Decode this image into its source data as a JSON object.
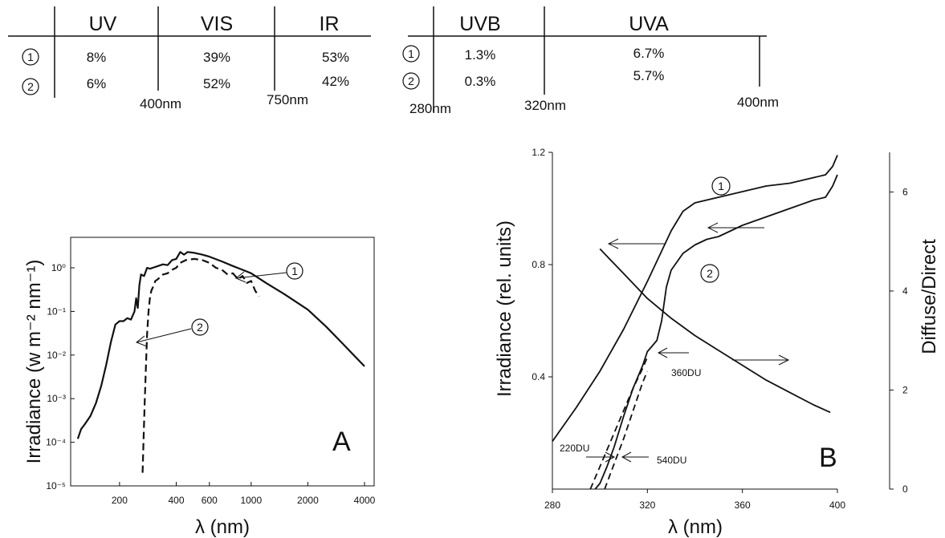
{
  "table_left": {
    "columns": [
      "UV",
      "VIS",
      "IR"
    ],
    "rows": [
      {
        "marker": "1",
        "values": [
          "8%",
          "39%",
          "53%"
        ]
      },
      {
        "marker": "2",
        "values": [
          "6%",
          "52%",
          "42%"
        ]
      }
    ],
    "boundaries": [
      "400nm",
      "750nm"
    ]
  },
  "table_right": {
    "columns": [
      "UVB",
      "UVA"
    ],
    "rows": [
      {
        "marker": "1",
        "values": [
          "1.3%",
          "6.7%"
        ]
      },
      {
        "marker": "2",
        "values": [
          "0.3%",
          "5.7%"
        ]
      }
    ],
    "boundaries": [
      "280nm",
      "320nm",
      "400nm"
    ]
  },
  "chart_data": [
    {
      "type": "line",
      "panel": "A",
      "xlabel": "λ (nm)",
      "ylabel": "Irradiance (w m⁻² nm⁻¹)",
      "x_scale": "log",
      "y_scale": "log",
      "xlim": [
        110,
        4500
      ],
      "ylim": [
        1e-05,
        5
      ],
      "x_ticks": [
        {
          "value": 200,
          "label": "200"
        },
        {
          "value": 400,
          "label": "400"
        },
        {
          "value": 600,
          "label": "600"
        },
        {
          "value": 1000,
          "label": "1000"
        },
        {
          "value": 2000,
          "label": "2000"
        },
        {
          "value": 4000,
          "label": "4000"
        }
      ],
      "y_ticks": [
        {
          "value": 1,
          "label": "10⁰"
        },
        {
          "value": 0.1,
          "label": "10⁻¹"
        },
        {
          "value": 0.01,
          "label": "10⁻²"
        },
        {
          "value": 0.001,
          "label": "10⁻³"
        },
        {
          "value": 0.0001,
          "label": "10⁻⁴"
        },
        {
          "value": 1e-05,
          "label": "10⁻⁵"
        }
      ],
      "series": [
        {
          "marker": "1",
          "style": "solid",
          "x": [
            120,
            125,
            130,
            140,
            150,
            160,
            170,
            180,
            190,
            200,
            210,
            220,
            230,
            240,
            245,
            250,
            255,
            260,
            270,
            280,
            290,
            300,
            320,
            340,
            360,
            380,
            400,
            420,
            440,
            460,
            500,
            550,
            600,
            700,
            800,
            900,
            1000,
            1200,
            1500,
            2000,
            2500,
            3000,
            3500,
            4000
          ],
          "y": [
            0.00012,
            0.0002,
            0.00025,
            0.0004,
            0.0008,
            0.002,
            0.006,
            0.02,
            0.05,
            0.06,
            0.06,
            0.07,
            0.065,
            0.1,
            0.2,
            0.12,
            0.4,
            0.7,
            0.65,
            1.0,
            0.95,
            1.0,
            1.1,
            1.2,
            1.15,
            1.5,
            1.6,
            2.3,
            2.0,
            2.3,
            2.2,
            2.0,
            1.8,
            1.4,
            1.1,
            0.9,
            0.75,
            0.45,
            0.25,
            0.11,
            0.045,
            0.02,
            0.01,
            0.0055
          ]
        },
        {
          "marker": "2",
          "style": "dashed",
          "x": [
            265,
            268,
            272,
            276,
            280,
            285,
            290,
            295,
            300,
            310,
            320,
            340,
            360,
            380,
            400,
            420,
            450,
            500,
            550,
            600,
            650,
            700,
            750,
            800,
            850,
            900,
            950,
            1000,
            1050,
            1100
          ],
          "y": [
            2e-05,
            0.0001,
            0.0008,
            0.005,
            0.03,
            0.1,
            0.2,
            0.3,
            0.35,
            0.5,
            0.55,
            0.7,
            0.75,
            0.9,
            1.0,
            1.3,
            1.5,
            1.6,
            1.5,
            1.3,
            1.0,
            0.9,
            0.7,
            0.75,
            0.55,
            0.65,
            0.45,
            0.5,
            0.3,
            0.22
          ]
        }
      ],
      "annotations": [
        {
          "text": "1",
          "points_to": {
            "x": 900,
            "y": 0.95
          }
        },
        {
          "text": "2",
          "points_to": {
            "x": 300,
            "y": 0.025
          }
        }
      ]
    },
    {
      "type": "line",
      "panel": "B",
      "xlabel": "λ (nm)",
      "ylabel": "Irradiance (rel. units)",
      "y2label": "Diffuse/Direct",
      "xlim": [
        280,
        400
      ],
      "ylim": [
        0,
        1.2
      ],
      "y2lim": [
        0,
        6.8
      ],
      "x_ticks": [
        {
          "value": 280,
          "label": "280"
        },
        {
          "value": 320,
          "label": "320"
        },
        {
          "value": 360,
          "label": "360"
        },
        {
          "value": 400,
          "label": "400"
        }
      ],
      "y_ticks": [
        {
          "value": 0.4,
          "label": "0.4"
        },
        {
          "value": 0.8,
          "label": "0.8"
        },
        {
          "value": 1.2,
          "label": "1.2"
        }
      ],
      "y2_ticks": [
        {
          "value": 0,
          "label": "0"
        },
        {
          "value": 2,
          "label": "2"
        },
        {
          "value": 4,
          "label": "4"
        },
        {
          "value": 6,
          "label": "6"
        }
      ],
      "series": [
        {
          "marker": "1",
          "axis": "left",
          "style": "solid",
          "x": [
            280,
            290,
            300,
            310,
            320,
            325,
            330,
            335,
            340,
            350,
            360,
            370,
            380,
            390,
            395,
            398,
            400
          ],
          "y": [
            0.17,
            0.29,
            0.42,
            0.57,
            0.74,
            0.83,
            0.92,
            0.99,
            1.02,
            1.04,
            1.06,
            1.08,
            1.09,
            1.11,
            1.12,
            1.15,
            1.19
          ]
        },
        {
          "marker": "2",
          "axis": "left",
          "style": "solid",
          "x": [
            298,
            300,
            303,
            306,
            310,
            314,
            318,
            320,
            322,
            324,
            326,
            328,
            330,
            335,
            340,
            345,
            350,
            360,
            370,
            380,
            390,
            395,
            398,
            400
          ],
          "y": [
            0.0,
            0.02,
            0.08,
            0.15,
            0.26,
            0.36,
            0.44,
            0.49,
            0.51,
            0.53,
            0.6,
            0.72,
            0.78,
            0.84,
            0.87,
            0.89,
            0.9,
            0.94,
            0.97,
            1.0,
            1.03,
            1.04,
            1.08,
            1.12
          ]
        },
        {
          "name": "Diffuse/Direct",
          "axis": "right",
          "style": "solid",
          "x": [
            300,
            310,
            320,
            330,
            340,
            350,
            360,
            370,
            380,
            390,
            397
          ],
          "y": [
            4.85,
            4.35,
            3.85,
            3.45,
            3.1,
            2.8,
            2.5,
            2.2,
            1.95,
            1.7,
            1.55
          ]
        },
        {
          "name": "220DU",
          "axis": "left",
          "style": "dashed",
          "x": [
            296,
            300,
            305,
            310,
            314,
            318,
            320
          ],
          "y": [
            0.0,
            0.08,
            0.18,
            0.28,
            0.36,
            0.43,
            0.47
          ]
        },
        {
          "name": "540DU",
          "axis": "left",
          "style": "dashed",
          "x": [
            302,
            306,
            310,
            314,
            318,
            320
          ],
          "y": [
            0.0,
            0.09,
            0.18,
            0.28,
            0.38,
            0.42
          ]
        }
      ],
      "labels": [
        {
          "text": "1",
          "anchor": {
            "x": 338,
            "y": 1.2
          }
        },
        {
          "text": "2",
          "anchor": {
            "x": 345,
            "y": 0.8
          }
        },
        {
          "text": "360DU",
          "anchor": {
            "x": 325,
            "y": 0.5
          }
        },
        {
          "text": "220DU",
          "anchor": {
            "x": 284,
            "y": 0.14
          }
        },
        {
          "text": "540DU",
          "anchor": {
            "x": 320,
            "y": 0.11
          }
        },
        {
          "text": "B",
          "anchor": {
            "x": 380,
            "y": 0.06
          }
        }
      ]
    }
  ]
}
